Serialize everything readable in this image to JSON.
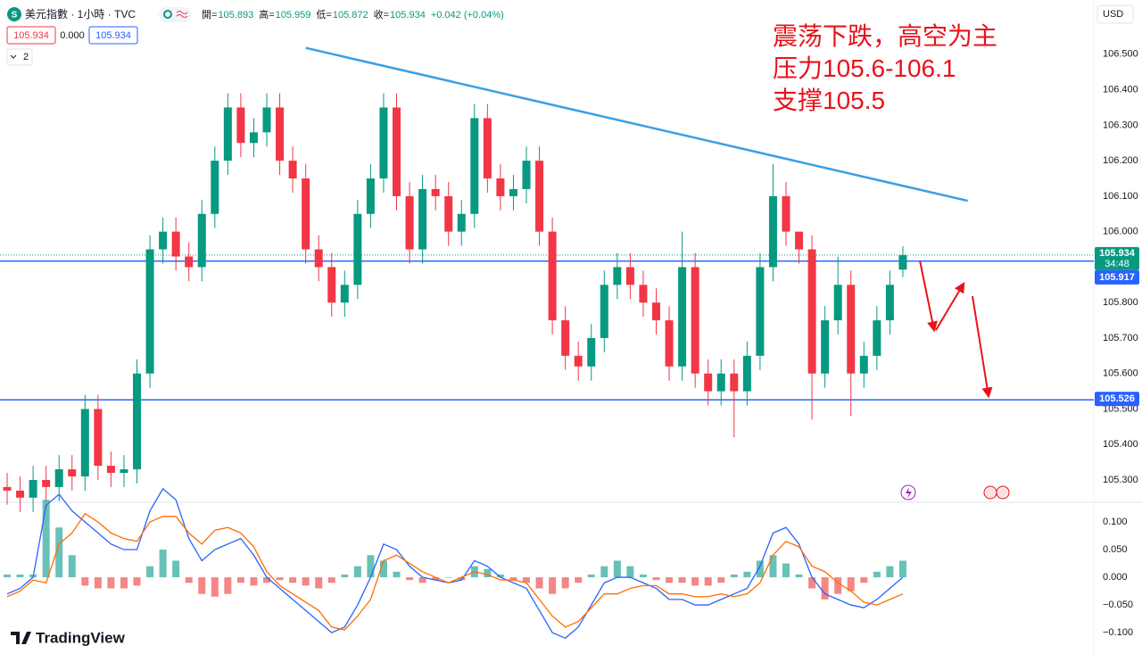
{
  "header": {
    "symbol_icon": "S",
    "title": "美元指數 · 1小時 · TVC",
    "ohlc": [
      {
        "label": "開=",
        "value": "105.893"
      },
      {
        "label": "高=",
        "value": "105.959"
      },
      {
        "label": "低=",
        "value": "105.872"
      },
      {
        "label": "收=",
        "value": "105.934"
      }
    ],
    "change": "+0.042 (+0.04%)",
    "sell": "105.934",
    "spread": "0.000",
    "buy": "105.934",
    "indicators": "2",
    "currency": "USD",
    "logo": "TradingView"
  },
  "chart_data": [
    {
      "type": "candlestick",
      "annotations": [
        "震荡下跌，高空为主",
        "压力105.6-106.1",
        "支撑105.5"
      ],
      "open": [
        105.28,
        105.27,
        105.25,
        105.3,
        105.28,
        105.33,
        105.31,
        105.5,
        105.34,
        105.32,
        105.33,
        105.6,
        105.95,
        106.0,
        105.93,
        105.9,
        106.05,
        106.2,
        106.35,
        106.25,
        106.28,
        106.35,
        106.2,
        106.15,
        105.95,
        105.9,
        105.8,
        105.85,
        106.05,
        106.15,
        106.35,
        106.1,
        105.95,
        106.12,
        106.1,
        106.0,
        106.05,
        106.32,
        106.15,
        106.1,
        106.12,
        106.2,
        106.0,
        105.75,
        105.65,
        105.62,
        105.7,
        105.85,
        105.9,
        105.85,
        105.8,
        105.75,
        105.62,
        105.9,
        105.6,
        105.55,
        105.6,
        105.55,
        105.65,
        105.9,
        106.1,
        106.0,
        105.95,
        105.6,
        105.75,
        105.85,
        105.6,
        105.65,
        105.75,
        105.893
      ],
      "high": [
        105.32,
        105.31,
        105.34,
        105.34,
        105.37,
        105.37,
        105.54,
        105.54,
        105.38,
        105.37,
        105.64,
        105.99,
        106.04,
        106.04,
        105.97,
        106.09,
        106.24,
        106.39,
        106.39,
        106.32,
        106.39,
        106.39,
        106.24,
        106.19,
        105.99,
        105.94,
        105.89,
        106.09,
        106.19,
        106.39,
        106.39,
        106.14,
        106.16,
        106.16,
        106.14,
        106.09,
        106.36,
        106.36,
        106.19,
        106.16,
        106.24,
        106.24,
        106.04,
        105.79,
        105.69,
        105.74,
        105.89,
        105.94,
        105.94,
        105.89,
        105.84,
        105.79,
        106.0,
        105.94,
        105.64,
        105.64,
        105.64,
        105.69,
        105.94,
        106.19,
        106.14,
        105.99,
        105.99,
        105.79,
        105.93,
        105.89,
        105.69,
        105.79,
        105.89,
        105.959
      ],
      "low": [
        105.23,
        105.21,
        105.21,
        105.24,
        105.24,
        105.27,
        105.27,
        105.3,
        105.28,
        105.28,
        105.29,
        105.56,
        105.91,
        105.89,
        105.86,
        105.86,
        106.01,
        106.16,
        106.21,
        106.21,
        106.24,
        106.16,
        106.11,
        105.91,
        105.86,
        105.76,
        105.76,
        105.81,
        106.01,
        106.11,
        106.06,
        105.91,
        105.91,
        106.06,
        105.96,
        105.96,
        106.01,
        106.11,
        106.06,
        106.06,
        106.08,
        105.96,
        105.71,
        105.61,
        105.58,
        105.58,
        105.66,
        105.81,
        105.81,
        105.76,
        105.71,
        105.58,
        105.58,
        105.56,
        105.51,
        105.51,
        105.42,
        105.51,
        105.61,
        105.86,
        105.96,
        105.91,
        105.47,
        105.56,
        105.71,
        105.48,
        105.56,
        105.61,
        105.71,
        105.872
      ],
      "close": [
        105.27,
        105.25,
        105.3,
        105.28,
        105.33,
        105.31,
        105.5,
        105.34,
        105.32,
        105.33,
        105.6,
        105.95,
        106.0,
        105.93,
        105.9,
        106.05,
        106.2,
        106.35,
        106.25,
        106.28,
        106.35,
        106.2,
        106.15,
        105.95,
        105.9,
        105.8,
        105.85,
        106.05,
        106.15,
        106.35,
        106.1,
        105.95,
        106.12,
        106.1,
        106.0,
        106.05,
        106.32,
        106.15,
        106.1,
        106.12,
        106.2,
        106.0,
        105.75,
        105.65,
        105.62,
        105.7,
        105.85,
        105.9,
        105.85,
        105.8,
        105.75,
        105.62,
        105.9,
        105.6,
        105.55,
        105.6,
        105.55,
        105.65,
        105.9,
        106.1,
        106.0,
        105.95,
        105.6,
        105.75,
        105.85,
        105.6,
        105.65,
        105.75,
        105.85,
        105.934
      ],
      "up_color": "#089981",
      "down_color": "#f23645",
      "ylim": [
        105.237,
        106.653
      ],
      "yticks": [
        {
          "value": 105.3,
          "label": "105.300"
        },
        {
          "value": 105.4,
          "label": "105.400"
        },
        {
          "value": 105.5,
          "label": "105.500"
        },
        {
          "value": 105.6,
          "label": "105.600"
        },
        {
          "value": 105.7,
          "label": "105.700"
        },
        {
          "value": 105.8,
          "label": "105.800"
        },
        {
          "value": 105.9,
          "label": "105.900"
        },
        {
          "value": 106.0,
          "label": "106.000"
        },
        {
          "value": 106.1,
          "label": "106.100"
        },
        {
          "value": 106.2,
          "label": "106.200"
        },
        {
          "value": 106.3,
          "label": "106.300"
        },
        {
          "value": 106.4,
          "label": "106.400"
        },
        {
          "value": 106.5,
          "label": "106.500"
        }
      ],
      "hlines": [
        {
          "value": 105.917,
          "label": "105.917",
          "color": "#2962ff"
        },
        {
          "value": 105.526,
          "label": "105.526",
          "color": "#2962ff"
        }
      ],
      "last_price": {
        "value": 105.934,
        "label": "105.934",
        "countdown": "34:48",
        "color": "#089981"
      },
      "trendline": {
        "x": [
          23,
          74
        ],
        "y": [
          106.518,
          106.087
        ],
        "color": "#3a9ee6"
      }
    },
    {
      "type": "macd",
      "histogram": [
        0.005,
        0.005,
        0.005,
        0.14,
        0.09,
        0.04,
        -0.015,
        -0.02,
        -0.02,
        -0.02,
        -0.015,
        0.02,
        0.05,
        0.03,
        -0.01,
        -0.03,
        -0.035,
        -0.03,
        -0.01,
        -0.015,
        -0.01,
        -0.005,
        -0.01,
        -0.015,
        -0.02,
        -0.01,
        0.005,
        0.02,
        0.04,
        0.03,
        0.01,
        -0.005,
        -0.01,
        -0.005,
        0.0,
        -0.005,
        0.02,
        0.015,
        0.005,
        -0.005,
        -0.01,
        -0.02,
        -0.03,
        -0.02,
        -0.01,
        0.005,
        0.02,
        0.03,
        0.02,
        0.005,
        -0.005,
        -0.01,
        -0.01,
        -0.015,
        -0.015,
        -0.01,
        0.005,
        0.01,
        0.03,
        0.04,
        0.025,
        0.005,
        -0.02,
        -0.04,
        -0.03,
        -0.025,
        -0.01,
        0.01,
        0.02,
        0.03
      ],
      "pos_color": "#26a69a",
      "neg_color": "#ef5350",
      "series": [
        {
          "color": "#2962ff",
          "values": [
            -0.03,
            -0.02,
            0.0,
            0.13,
            0.15,
            0.12,
            0.1,
            0.08,
            0.06,
            0.05,
            0.05,
            0.12,
            0.16,
            0.14,
            0.07,
            0.03,
            0.05,
            0.06,
            0.07,
            0.04,
            0.0,
            -0.02,
            -0.04,
            -0.06,
            -0.08,
            -0.1,
            -0.09,
            -0.05,
            0.0,
            0.06,
            0.05,
            0.02,
            0.0,
            -0.005,
            -0.01,
            -0.005,
            0.03,
            0.02,
            0.0,
            -0.01,
            -0.02,
            -0.06,
            -0.1,
            -0.11,
            -0.09,
            -0.05,
            -0.01,
            0.0,
            0.0,
            -0.01,
            -0.02,
            -0.04,
            -0.04,
            -0.05,
            -0.05,
            -0.04,
            -0.03,
            -0.02,
            0.02,
            0.08,
            0.09,
            0.06,
            0.0,
            -0.03,
            -0.04,
            -0.05,
            -0.055,
            -0.04,
            -0.02,
            0.0
          ]
        },
        {
          "color": "#ff6d00",
          "values": [
            -0.035,
            -0.025,
            -0.005,
            -0.01,
            0.06,
            0.08,
            0.115,
            0.1,
            0.08,
            0.07,
            0.065,
            0.1,
            0.11,
            0.11,
            0.08,
            0.06,
            0.085,
            0.09,
            0.08,
            0.055,
            0.01,
            -0.015,
            -0.03,
            -0.045,
            -0.06,
            -0.09,
            -0.095,
            -0.07,
            -0.04,
            0.03,
            0.04,
            0.025,
            0.01,
            0.0,
            -0.01,
            0.0,
            0.01,
            0.005,
            -0.005,
            -0.005,
            -0.01,
            -0.04,
            -0.07,
            -0.09,
            -0.08,
            -0.055,
            -0.03,
            -0.03,
            -0.02,
            -0.015,
            -0.015,
            -0.03,
            -0.03,
            -0.035,
            -0.035,
            -0.03,
            -0.035,
            -0.03,
            -0.01,
            0.04,
            0.065,
            0.055,
            0.02,
            0.01,
            -0.01,
            -0.025,
            -0.045,
            -0.05,
            -0.04,
            -0.03
          ]
        }
      ],
      "ylim": [
        -0.145,
        0.1355
      ],
      "yticks": [
        {
          "value": -0.1,
          "label": "−0.100"
        },
        {
          "value": -0.05,
          "label": "−0.050"
        },
        {
          "value": 0,
          "label": "0.000"
        },
        {
          "value": 0.05,
          "label": "0.050"
        },
        {
          "value": 0.1,
          "label": "0.100"
        }
      ]
    }
  ]
}
